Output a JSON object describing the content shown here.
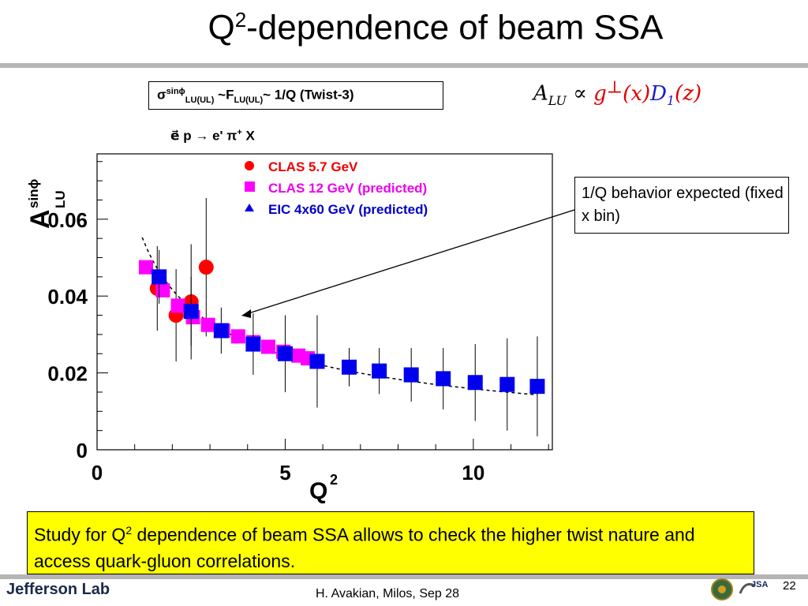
{
  "slide": {
    "title_pre": "Q",
    "title_sup": "2",
    "title_post": "-dependence of beam SSA",
    "formula_box": {
      "sigma": "σ",
      "sup1": "sinϕ",
      "sub1": "LU(UL)",
      "mid": " ~F",
      "sub2": "LU(UL)",
      "tail": "~ 1/Q (Twist-3)"
    },
    "alu_formula": {
      "a": "A",
      "a_sub": "LU",
      "prop": " ∝ ",
      "g": "g",
      "g_sup": "⊥",
      "gx": "(x)",
      "d": "D",
      "d_sub": "1",
      "dz": "(z)"
    },
    "reaction": {
      "e1": "e⃗ p → e' π",
      "sup": "+",
      "rest": " X"
    },
    "annotation": "1/Q behavior expected (fixed x bin)",
    "bottom_text": {
      "pre": "Study for Q",
      "sup": "2",
      "post": " dependence of beam SSA allows to check the higher twist nature and access quark-gluon correlations."
    },
    "footer": "H. Avakian, Milos,  Sep 28",
    "logo": "Jefferson Lab",
    "logo_jsa": "JSA",
    "page_number": "22"
  },
  "colors": {
    "clas57": "#ff0000",
    "clas12": "#ff00ff",
    "eic": "#0000ee",
    "legend_clas57": "#ee0000",
    "legend_clas12": "#ee00ee",
    "legend_eic": "#0000cc"
  },
  "chart_data": {
    "type": "scatter",
    "xlabel": "Q",
    "xlabel_sup": "2",
    "ylabel": "A",
    "ylabel_sup": "sinϕ",
    "ylabel_sub": "LU",
    "xlim": [
      0,
      12.1
    ],
    "ylim": [
      0,
      0.077
    ],
    "x_ticks": [
      {
        "value": 0,
        "label": "0"
      },
      {
        "value": 5,
        "label": "5"
      },
      {
        "value": 10,
        "label": "10"
      }
    ],
    "y_ticks": [
      {
        "value": 0,
        "label": "0"
      },
      {
        "value": 0.02,
        "label": "0.02"
      },
      {
        "value": 0.04,
        "label": "0.04"
      },
      {
        "value": 0.06,
        "label": "0.06"
      }
    ],
    "legend_position": "top-left",
    "series": [
      {
        "name": "CLAS 5.7 GeV",
        "marker": "circle",
        "points": [
          {
            "x": 1.6,
            "y": 0.042,
            "err": 0.011
          },
          {
            "x": 2.1,
            "y": 0.035,
            "err": 0.012
          },
          {
            "x": 2.5,
            "y": 0.0385,
            "err": 0.015
          },
          {
            "x": 2.9,
            "y": 0.0475,
            "err": 0.018
          }
        ]
      },
      {
        "name": "CLAS 12 GeV (predicted)",
        "marker": "square",
        "points": [
          {
            "x": 1.3,
            "y": 0.0475,
            "err": 0
          },
          {
            "x": 1.75,
            "y": 0.0415,
            "err": 0
          },
          {
            "x": 2.15,
            "y": 0.0375,
            "err": 0
          },
          {
            "x": 2.55,
            "y": 0.0345,
            "err": 0
          },
          {
            "x": 2.95,
            "y": 0.0325,
            "err": 0
          },
          {
            "x": 3.35,
            "y": 0.031,
            "err": 0
          },
          {
            "x": 3.75,
            "y": 0.0295,
            "err": 0
          },
          {
            "x": 4.15,
            "y": 0.028,
            "err": 0
          },
          {
            "x": 4.55,
            "y": 0.0268,
            "err": 0
          },
          {
            "x": 4.95,
            "y": 0.0255,
            "err": 0
          },
          {
            "x": 5.35,
            "y": 0.0245,
            "err": 0
          },
          {
            "x": 5.6,
            "y": 0.0238,
            "err": 0
          }
        ]
      },
      {
        "name": "EIC 4x60 GeV (predicted)",
        "marker": "square",
        "points": [
          {
            "x": 1.65,
            "y": 0.045,
            "err": 0.007
          },
          {
            "x": 2.5,
            "y": 0.036,
            "err": 0.009
          },
          {
            "x": 3.3,
            "y": 0.031,
            "err": 0.006
          },
          {
            "x": 4.15,
            "y": 0.0275,
            "err": 0.008
          },
          {
            "x": 5.0,
            "y": 0.025,
            "err": 0.01
          },
          {
            "x": 5.85,
            "y": 0.023,
            "err": 0.012
          },
          {
            "x": 6.7,
            "y": 0.0215,
            "err": 0.005
          },
          {
            "x": 7.5,
            "y": 0.0205,
            "err": 0.006
          },
          {
            "x": 8.35,
            "y": 0.0195,
            "err": 0.007
          },
          {
            "x": 9.2,
            "y": 0.0185,
            "err": 0.008
          },
          {
            "x": 10.05,
            "y": 0.0175,
            "err": 0.01
          },
          {
            "x": 10.9,
            "y": 0.017,
            "err": 0.012
          },
          {
            "x": 11.7,
            "y": 0.0165,
            "err": 0.013
          }
        ]
      }
    ],
    "fit_curve": {
      "style": "dashed",
      "a": 0.066,
      "b": -0.005,
      "x_from": 1.2,
      "x_to": 11.7
    }
  }
}
